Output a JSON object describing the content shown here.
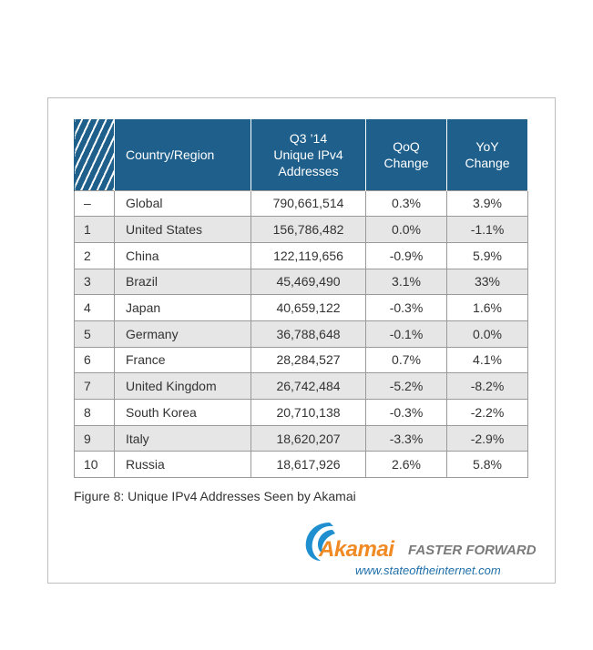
{
  "table": {
    "headers": [
      "",
      "Country/Region",
      "Q3 '14\nUnique IPv4\nAddresses",
      "QoQ\nChange",
      "YoY\nChange"
    ],
    "header_lines": {
      "country": "Country/Region",
      "addresses": [
        "Q3 ’14",
        "Unique IPv4",
        "Addresses"
      ],
      "qoq": [
        "QoQ",
        "Change"
      ],
      "yoy": [
        "YoY",
        "Change"
      ]
    },
    "rows": [
      {
        "rank": "–",
        "country": "Global",
        "addresses": "790,661,514",
        "qoq": "0.3%",
        "yoy": "3.9%"
      },
      {
        "rank": "1",
        "country": "United States",
        "addresses": "156,786,482",
        "qoq": "0.0%",
        "yoy": "-1.1%"
      },
      {
        "rank": "2",
        "country": "China",
        "addresses": "122,119,656",
        "qoq": "-0.9%",
        "yoy": "5.9%"
      },
      {
        "rank": "3",
        "country": "Brazil",
        "addresses": "45,469,490",
        "qoq": "3.1%",
        "yoy": "33%"
      },
      {
        "rank": "4",
        "country": "Japan",
        "addresses": "40,659,122",
        "qoq": "-0.3%",
        "yoy": "1.6%"
      },
      {
        "rank": "5",
        "country": "Germany",
        "addresses": "36,788,648",
        "qoq": "-0.1%",
        "yoy": "0.0%"
      },
      {
        "rank": "6",
        "country": "France",
        "addresses": "28,284,527",
        "qoq": "0.7%",
        "yoy": "4.1%"
      },
      {
        "rank": "7",
        "country": "United Kingdom",
        "addresses": "26,742,484",
        "qoq": "-5.2%",
        "yoy": "-8.2%"
      },
      {
        "rank": "8",
        "country": "South Korea",
        "addresses": "20,710,138",
        "qoq": "-0.3%",
        "yoy": "-2.2%"
      },
      {
        "rank": "9",
        "country": "Italy",
        "addresses": "18,620,207",
        "qoq": "-3.3%",
        "yoy": "-2.9%"
      },
      {
        "rank": "10",
        "country": "Russia",
        "addresses": "18,617,926",
        "qoq": "2.6%",
        "yoy": "5.8%"
      }
    ]
  },
  "caption": "Figure 8: Unique IPv4 Addresses Seen by Akamai",
  "logo": {
    "brand": "Akamai",
    "tagline": "FASTER FORWARD",
    "url": "www.stateoftheinternet.com"
  },
  "colors": {
    "header_bg": "#1f5f8b",
    "brand_orange": "#f08a24",
    "url_blue": "#1f6fa8",
    "row_shade": "#e6e6e6"
  }
}
